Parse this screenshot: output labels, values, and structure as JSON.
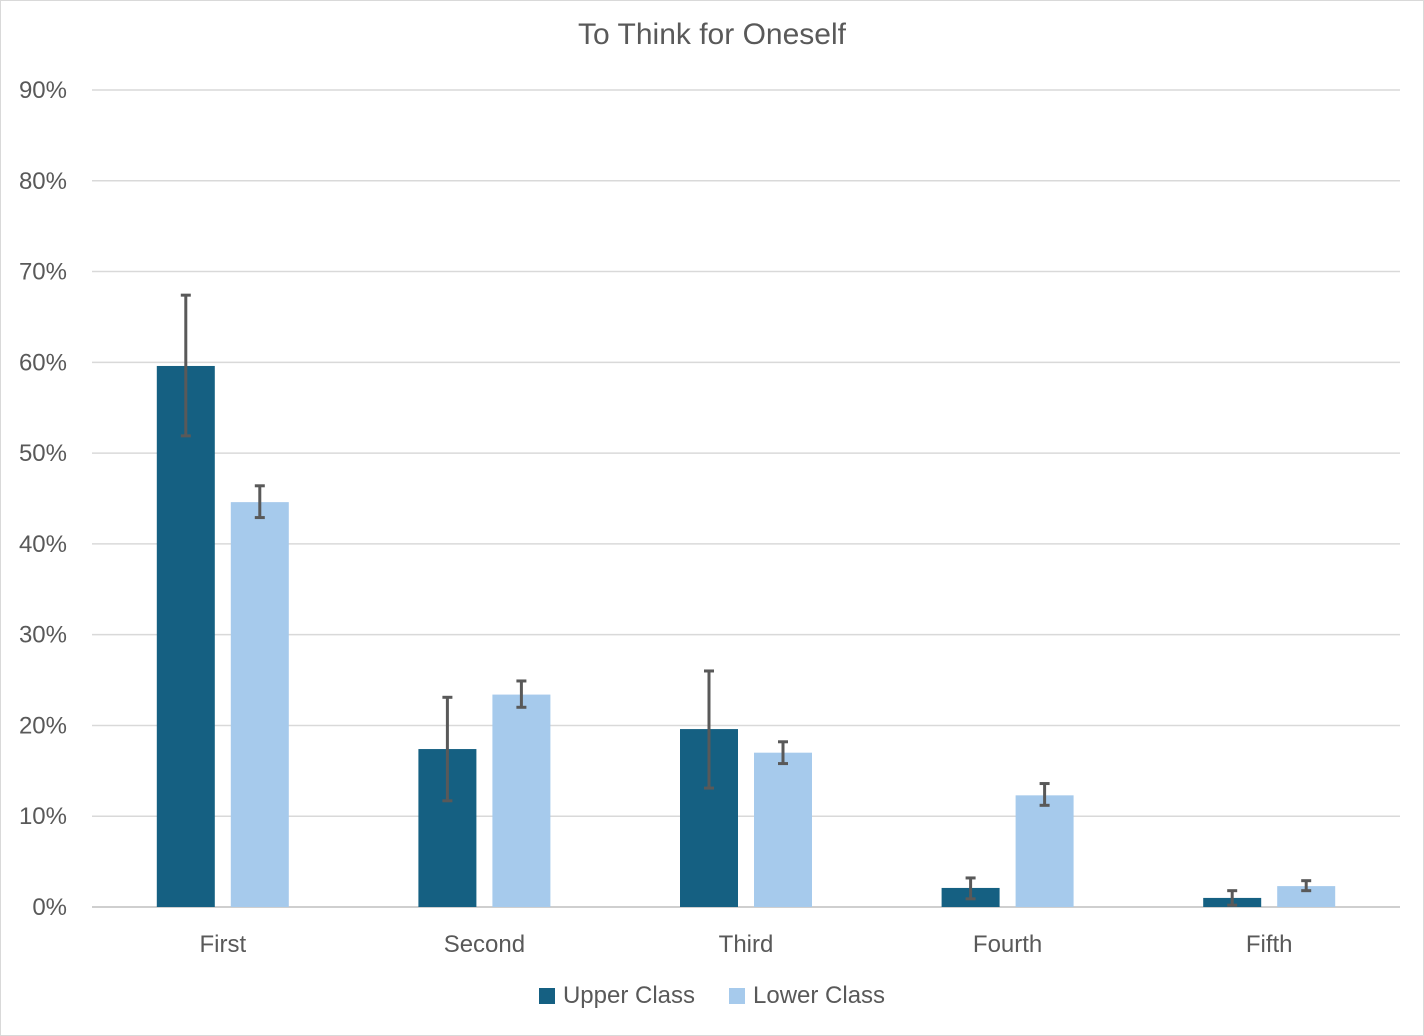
{
  "chart_data": {
    "type": "bar",
    "title": "To Think for Oneself",
    "xlabel": "",
    "ylabel": "",
    "categories": [
      "First",
      "Second",
      "Third",
      "Fourth",
      "Fifth"
    ],
    "ylim": [
      0,
      90
    ],
    "y_ticks": [
      "0%",
      "10%",
      "20%",
      "30%",
      "40%",
      "50%",
      "60%",
      "70%",
      "80%",
      "90%"
    ],
    "y_tick_values": [
      0,
      10,
      20,
      30,
      40,
      50,
      60,
      70,
      80,
      90
    ],
    "grid": true,
    "legend_position": "bottom",
    "series": [
      {
        "name": "Upper Class",
        "color": "#156082",
        "values": [
          59.6,
          17.4,
          19.6,
          2.1,
          1.0
        ],
        "error_low": [
          51.9,
          11.7,
          13.1,
          0.9,
          0.2
        ],
        "error_high": [
          67.4,
          23.1,
          26.0,
          3.2,
          1.8
        ]
      },
      {
        "name": "Lower Class",
        "color": "#a6caec",
        "values": [
          44.6,
          23.4,
          17.0,
          12.3,
          2.3
        ],
        "error_low": [
          42.9,
          22.0,
          15.8,
          11.2,
          1.8
        ],
        "error_high": [
          46.4,
          24.9,
          18.2,
          13.6,
          2.9
        ]
      }
    ]
  }
}
